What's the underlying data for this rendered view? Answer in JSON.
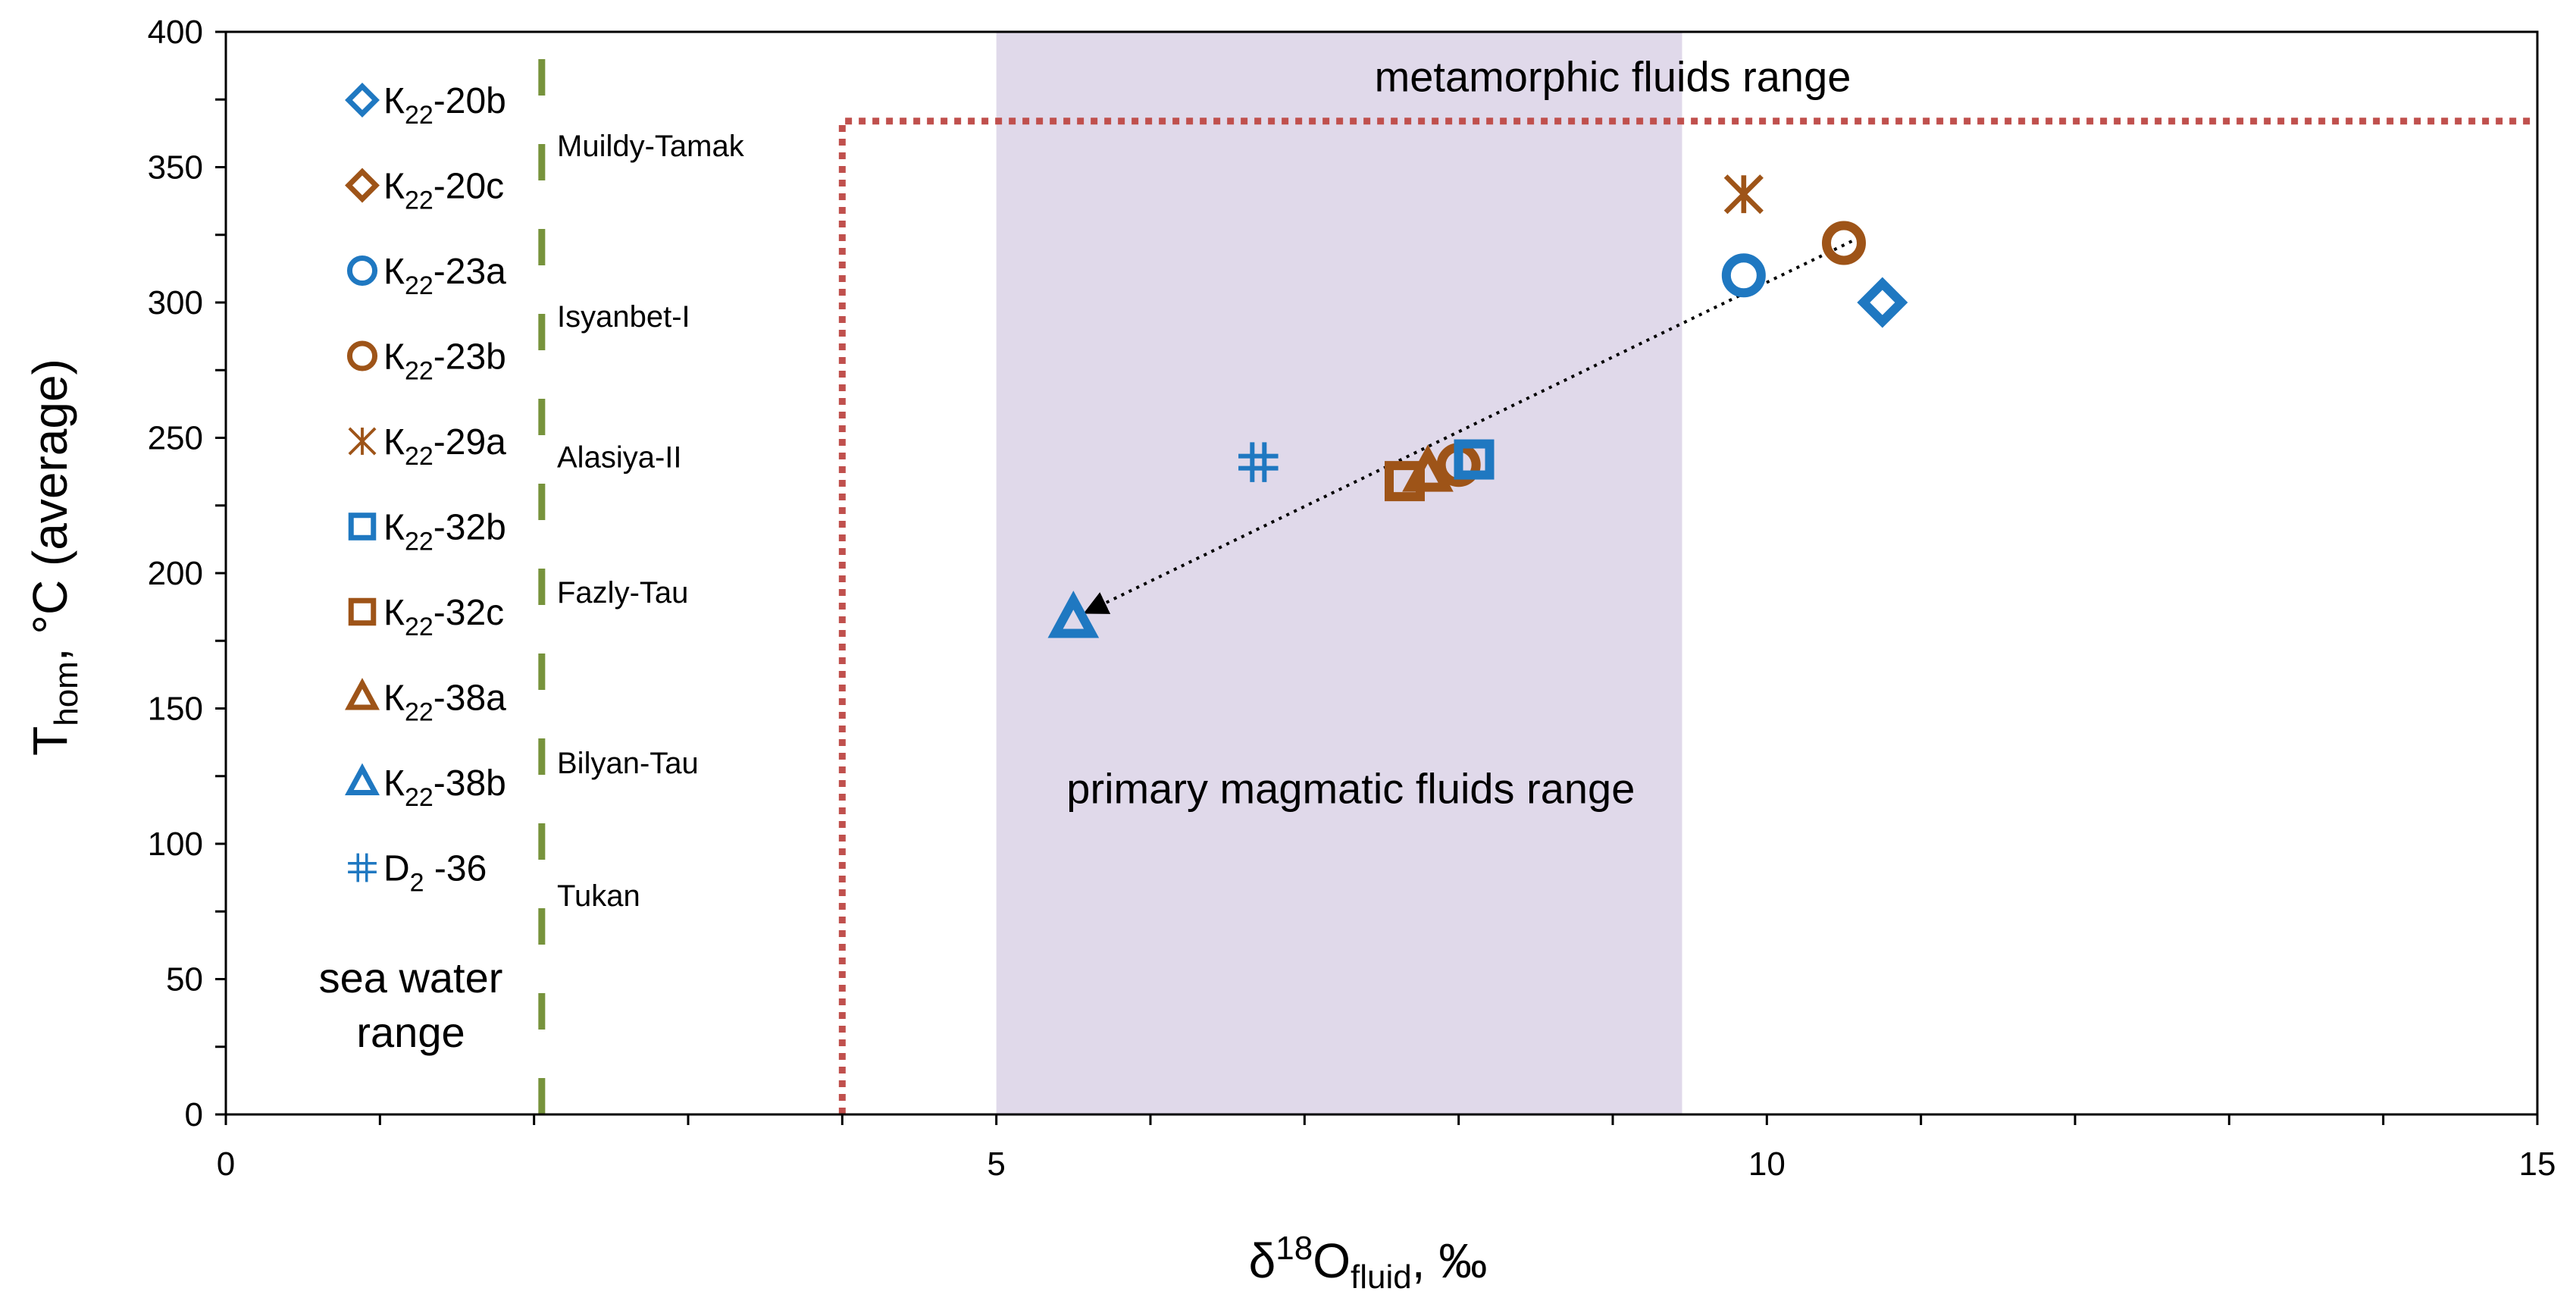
{
  "chart_data": {
    "type": "scatter",
    "title": "",
    "xlabel": {
      "main": "δ",
      "sup": "18",
      "base": "O",
      "sub": "fluid",
      "tail": ", ‰"
    },
    "ylabel": {
      "main": "T",
      "sub": "hom",
      "tail": ", °C (average)"
    },
    "xlim": [
      0,
      15
    ],
    "ylim": [
      0,
      400
    ],
    "x_ticks": [
      0,
      5,
      10,
      15
    ],
    "y_ticks": [
      0,
      50,
      100,
      150,
      200,
      250,
      300,
      350,
      400
    ],
    "x_minor_step": 1,
    "y_minor_step": 25,
    "grid": false,
    "colors": {
      "blue": "#1f78c1",
      "brown": "#9e5418",
      "green": "#77933c",
      "red": "#c0504d",
      "shade": "#e0d9ea",
      "axis": "#000000"
    },
    "regions": [
      {
        "name": "primary-magmatic",
        "label": "primary magmatic fluids range",
        "x": [
          5.0,
          9.45
        ],
        "y": [
          0,
          400
        ],
        "label_at": [
          7.3,
          115
        ]
      },
      {
        "name": "metamorphic",
        "label": "metamorphic fluids range",
        "x_start": 4.0,
        "y_top": 367,
        "label_at": [
          9.0,
          378
        ]
      },
      {
        "name": "sea-water",
        "label": [
          "sea water",
          "range"
        ],
        "x": 2.05,
        "label_at": [
          1.2,
          39
        ]
      }
    ],
    "series": [
      {
        "name": "К22-20b",
        "base": "К",
        "sub": "22",
        "tail": "-20b",
        "marker": "diamond",
        "color": "blue",
        "points": [
          [
            10.75,
            300
          ]
        ]
      },
      {
        "name": "К22-20c",
        "base": "К",
        "sub": "22",
        "tail": "-20c",
        "marker": "diamond",
        "color": "brown",
        "points": []
      },
      {
        "name": "К22-23a",
        "base": "К",
        "sub": "22",
        "tail": "-23a",
        "marker": "circle",
        "color": "blue",
        "points": [
          [
            9.85,
            310
          ]
        ]
      },
      {
        "name": "К22-23b",
        "base": "К",
        "sub": "22",
        "tail": "-23b",
        "marker": "circle",
        "color": "brown",
        "points": [
          [
            10.5,
            322
          ],
          [
            8.0,
            240
          ]
        ]
      },
      {
        "name": "К22-29a",
        "base": "К",
        "sub": "22",
        "tail": "-29a",
        "marker": "star",
        "color": "brown",
        "points": [
          [
            9.85,
            340
          ]
        ]
      },
      {
        "name": "К22-32b",
        "base": "К",
        "sub": "22",
        "tail": "-32b",
        "marker": "square",
        "color": "blue",
        "points": [
          [
            8.1,
            242
          ]
        ]
      },
      {
        "name": "К22-32c",
        "base": "К",
        "sub": "22",
        "tail": "-32c",
        "marker": "square",
        "color": "brown",
        "points": [
          [
            7.65,
            234
          ]
        ]
      },
      {
        "name": "К22-38a",
        "base": "К",
        "sub": "22",
        "tail": "-38a",
        "marker": "triangle",
        "color": "brown",
        "points": [
          [
            7.8,
            237
          ]
        ]
      },
      {
        "name": "К22-38b",
        "base": "К",
        "sub": "22",
        "tail": "-38b",
        "marker": "triangle",
        "color": "blue",
        "points": [
          [
            5.5,
            183
          ]
        ]
      },
      {
        "name": "D2 -36",
        "base": "D",
        "sub": "2",
        "tail": " -36",
        "marker": "hash",
        "color": "blue",
        "points": [
          [
            6.7,
            241
          ]
        ]
      }
    ],
    "groups": [
      {
        "label": "Muildy-Tamak",
        "y": 358
      },
      {
        "label": "Isyanbet-I",
        "y": 295
      },
      {
        "label": "Alasiya-II",
        "y": 243
      },
      {
        "label": "Fazly-Tau",
        "y": 193
      },
      {
        "label": "Bilyan-Tau",
        "y": 130
      },
      {
        "label": "Tukan",
        "y": 81
      }
    ],
    "trendline": {
      "type": "linear",
      "from": [
        10.6,
        324
      ],
      "to": [
        5.6,
        186
      ],
      "arrow_at": "from-start-to-end"
    }
  }
}
